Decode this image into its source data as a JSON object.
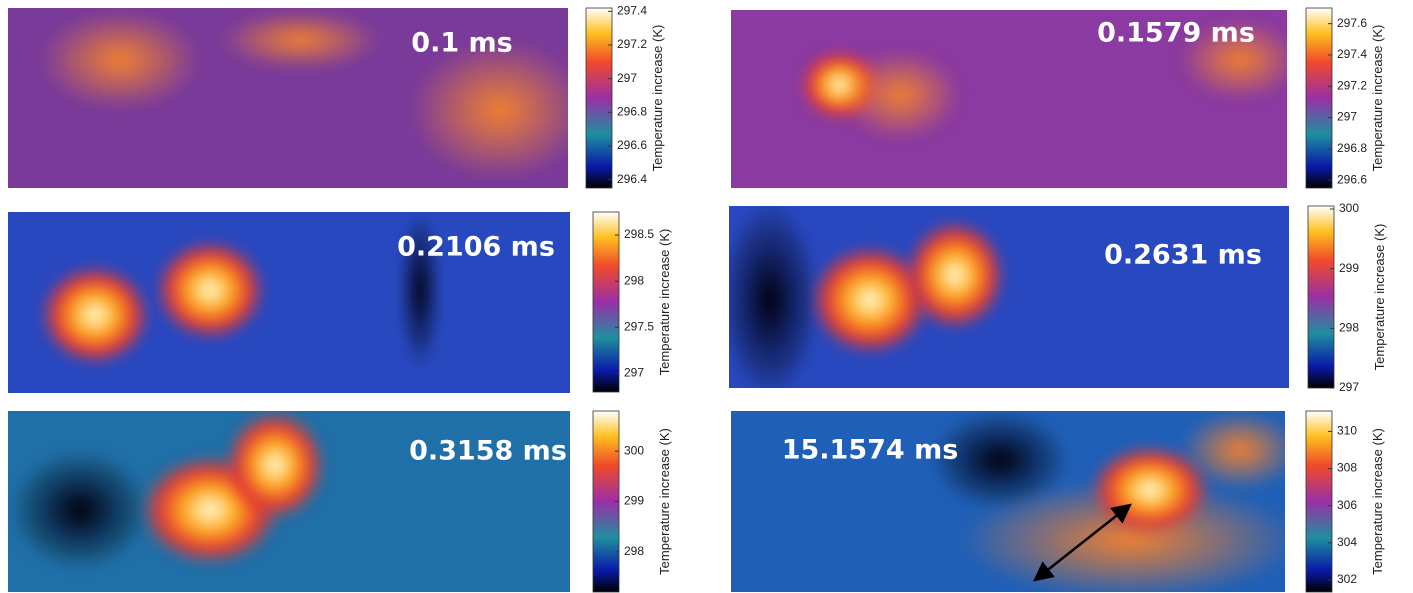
{
  "chart_data": [
    {
      "type": "heatmap",
      "annotation": "0.1 ms",
      "colorbar_label": "Temperature increase (K)",
      "clim": [
        296.35,
        297.42
      ],
      "cticks": [
        296.4,
        296.6,
        296.8,
        297,
        297.2,
        297.4
      ]
    },
    {
      "type": "heatmap",
      "annotation": "0.1579 ms",
      "colorbar_label": "Temperature increase (K)",
      "clim": [
        296.55,
        297.7
      ],
      "cticks": [
        296.6,
        296.8,
        297,
        297.2,
        297.4,
        297.6
      ]
    },
    {
      "type": "heatmap",
      "annotation": "0.2106 ms",
      "colorbar_label": "Temperature increase (K)",
      "clim": [
        296.8,
        298.75
      ],
      "cticks": [
        297,
        297.5,
        298,
        298.5
      ]
    },
    {
      "type": "heatmap",
      "annotation": "0.2631 ms",
      "colorbar_label": "Temperature increase (K)",
      "clim": [
        297,
        300.05
      ],
      "cticks": [
        297,
        298,
        299,
        300
      ]
    },
    {
      "type": "heatmap",
      "annotation": "0.3158 ms",
      "colorbar_label": "Temperature increase (K)",
      "clim": [
        297.2,
        300.8
      ],
      "cticks": [
        298,
        299,
        300
      ]
    },
    {
      "type": "heatmap",
      "annotation": "15.1574 ms",
      "colorbar_label": "Temperature increase (K)",
      "clim": [
        301.35,
        311.1
      ],
      "cticks": [
        302,
        304,
        306,
        308,
        310
      ]
    }
  ]
}
